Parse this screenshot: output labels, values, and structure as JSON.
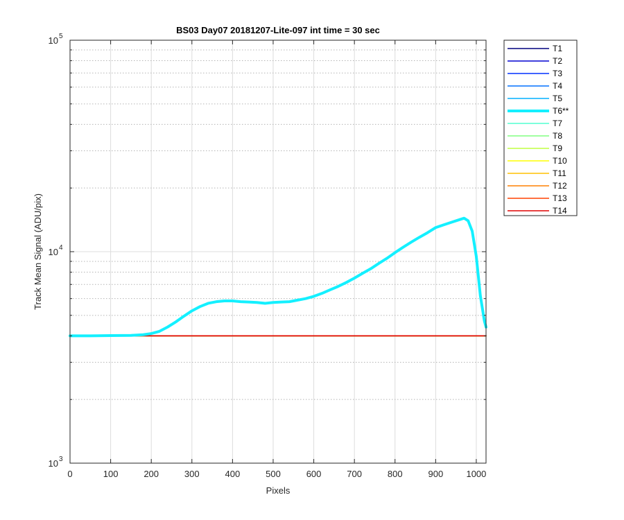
{
  "chart_data": {
    "type": "line",
    "title": "BS03 Day07 20181207-Lite-097 int time = 30 sec",
    "xlabel": "Pixels",
    "ylabel": "Track Mean Signal (ADU/pix)",
    "xlim": [
      0,
      1024
    ],
    "ylim": [
      1000,
      100000
    ],
    "yscale": "log",
    "grid": true,
    "legend_position": "outside-right",
    "x_ticks": [
      0,
      100,
      200,
      300,
      400,
      500,
      600,
      700,
      800,
      900,
      1000
    ],
    "x_tick_labels": [
      "0",
      "100",
      "200",
      "300",
      "400",
      "500",
      "600",
      "700",
      "800",
      "900",
      "1000"
    ],
    "y_ticks": [
      {
        "value": 1000,
        "base": "10",
        "exp": "3"
      },
      {
        "value": 10000,
        "base": "10",
        "exp": "4"
      },
      {
        "value": 100000,
        "base": "10",
        "exp": "5"
      }
    ],
    "series": [
      {
        "name": "T1",
        "color": "#00007f",
        "highlight": false,
        "x": [
          0,
          1024
        ],
        "y": [
          4000,
          4000
        ]
      },
      {
        "name": "T2",
        "color": "#0000d0",
        "highlight": false,
        "x": [
          0,
          1024
        ],
        "y": [
          4000,
          4000
        ]
      },
      {
        "name": "T3",
        "color": "#0030ff",
        "highlight": false,
        "x": [
          0,
          1024
        ],
        "y": [
          4000,
          4000
        ]
      },
      {
        "name": "T4",
        "color": "#0070ff",
        "highlight": false,
        "x": [
          0,
          1024
        ],
        "y": [
          4000,
          4000
        ]
      },
      {
        "name": "T5",
        "color": "#00b0ff",
        "highlight": false,
        "x": [
          0,
          1024
        ],
        "y": [
          4000,
          4000
        ]
      },
      {
        "name": "T6**",
        "color": "#14f0ff",
        "highlight": true,
        "x": [
          0,
          50,
          100,
          150,
          180,
          200,
          220,
          240,
          260,
          280,
          300,
          320,
          340,
          360,
          380,
          400,
          420,
          440,
          460,
          480,
          500,
          520,
          540,
          560,
          580,
          600,
          620,
          640,
          660,
          680,
          700,
          720,
          740,
          760,
          780,
          800,
          820,
          840,
          860,
          880,
          900,
          920,
          940,
          960,
          970,
          980,
          990,
          1000,
          1010,
          1020,
          1024
        ],
        "y": [
          4000,
          4000,
          4010,
          4020,
          4050,
          4100,
          4200,
          4400,
          4650,
          4950,
          5250,
          5500,
          5700,
          5800,
          5850,
          5850,
          5800,
          5780,
          5750,
          5700,
          5750,
          5780,
          5800,
          5900,
          6000,
          6150,
          6350,
          6600,
          6850,
          7150,
          7500,
          7900,
          8300,
          8800,
          9300,
          9900,
          10500,
          11100,
          11700,
          12300,
          13000,
          13400,
          13800,
          14200,
          14400,
          14000,
          12500,
          9500,
          6200,
          4700,
          4400
        ]
      },
      {
        "name": "T7",
        "color": "#50ffd0",
        "highlight": false,
        "x": [
          0,
          1024
        ],
        "y": [
          4000,
          4000
        ]
      },
      {
        "name": "T8",
        "color": "#80ff80",
        "highlight": false,
        "x": [
          0,
          1024
        ],
        "y": [
          4000,
          4000
        ]
      },
      {
        "name": "T9",
        "color": "#c0ff40",
        "highlight": false,
        "x": [
          0,
          1024
        ],
        "y": [
          4000,
          4000
        ]
      },
      {
        "name": "T10",
        "color": "#ffff00",
        "highlight": false,
        "x": [
          0,
          1024
        ],
        "y": [
          4000,
          4000
        ]
      },
      {
        "name": "T11",
        "color": "#ffc000",
        "highlight": false,
        "x": [
          0,
          1024
        ],
        "y": [
          4000,
          4000
        ]
      },
      {
        "name": "T12",
        "color": "#ff8000",
        "highlight": false,
        "x": [
          0,
          1024
        ],
        "y": [
          4000,
          4000
        ]
      },
      {
        "name": "T13",
        "color": "#ff4000",
        "highlight": false,
        "x": [
          0,
          1024
        ],
        "y": [
          4000,
          4000
        ]
      },
      {
        "name": "T14",
        "color": "#e00000",
        "highlight": false,
        "x": [
          0,
          1024
        ],
        "y": [
          4000,
          4000
        ]
      }
    ]
  }
}
